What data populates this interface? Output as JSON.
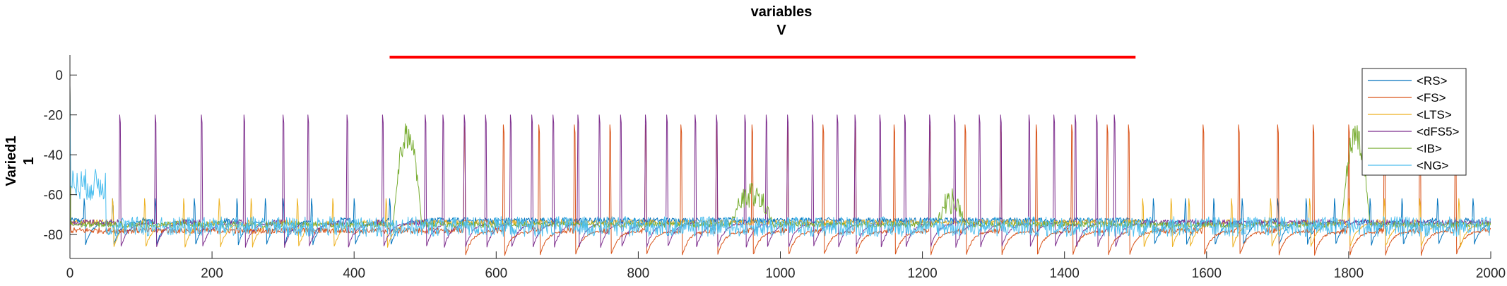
{
  "chart_data": {
    "type": "line",
    "title": [
      "variables",
      "V"
    ],
    "ylabel": [
      "Varied1",
      "1"
    ],
    "xlabel": "",
    "xlim": [
      0,
      2000
    ],
    "ylim": [
      -92,
      10
    ],
    "xticks": [
      0,
      200,
      400,
      600,
      800,
      1000,
      1200,
      1400,
      1600,
      1800,
      2000
    ],
    "yticks": [
      0,
      -20,
      -40,
      -60,
      -80
    ],
    "grid": false,
    "legend_position": "top-right",
    "stimulus_bar": {
      "x": [
        450,
        1500
      ],
      "y": 9,
      "color": "#ff0000"
    },
    "series": [
      {
        "name": "<RS>",
        "color": "#0072bd",
        "rest": -73,
        "spike_peak": -68,
        "spikes": [
          20,
          60,
          120,
          175,
          235,
          275,
          300,
          340,
          400,
          450,
          1525,
          1570,
          1610,
          1650,
          1700,
          1740,
          1780,
          1830,
          1875,
          1925,
          1975
        ]
      },
      {
        "name": "<FS>",
        "color": "#d95319",
        "rest": -78,
        "spike_peak": -75,
        "spikes": [
          555,
          610,
          660,
          710,
          760,
          810,
          860,
          910,
          960,
          1010,
          1060,
          1105,
          1160,
          1210,
          1260,
          1310,
          1360,
          1410,
          1460,
          1490,
          1595,
          1645,
          1700,
          1750,
          1800,
          1850,
          1900,
          1950
        ]
      },
      {
        "name": "<LTS>",
        "color": "#edb120",
        "rest": -74,
        "spike_peak": -68,
        "spikes": [
          60,
          105,
          160,
          210,
          255,
          320,
          370,
          445,
          1510,
          1550,
          1575,
          1635,
          1690,
          1745,
          1800,
          1850,
          1900,
          1955
        ]
      },
      {
        "name": "<dFS5>",
        "color": "#7e2f8e",
        "rest": -74,
        "spike_peak": -70,
        "spikes": [
          70,
          120,
          185,
          245,
          300,
          335,
          390,
          440,
          500,
          525,
          555,
          585,
          620,
          650,
          680,
          715,
          745,
          775,
          810,
          840,
          880,
          910,
          950,
          980,
          1010,
          1045,
          1080,
          1105,
          1140,
          1175,
          1210,
          1245,
          1280,
          1310,
          1350,
          1385,
          1415,
          1445,
          1470
        ]
      },
      {
        "name": "<IB>",
        "color": "#77ac30",
        "rest": -75,
        "spike_peak": -70,
        "bursts": [
          [
            455,
            495,
            -30
          ],
          [
            1790,
            1830,
            -30
          ],
          [
            930,
            990,
            -60
          ],
          [
            1220,
            1260,
            -63
          ]
        ]
      },
      {
        "name": "<NG>",
        "color": "#4dbeee",
        "rest": -78,
        "spike_peak": -62,
        "noisy_range": [
          0,
          50,
          -55
        ]
      }
    ]
  }
}
